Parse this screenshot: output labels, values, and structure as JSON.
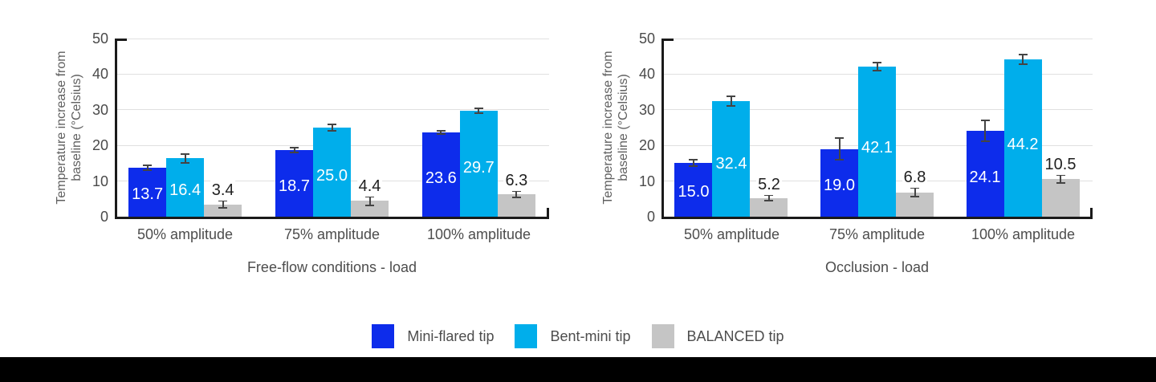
{
  "page": {
    "background": "#ffffff"
  },
  "colors": {
    "mini_flared": "#0d2ceb",
    "bent_mini": "#00aeeb",
    "balanced": "#c5c5c5",
    "axis": "#1a1a1a",
    "gridline": "#e0e0e0",
    "tick_label": "#4a4a4a",
    "axis_title": "#4d4d4d",
    "error_bar": "#444444",
    "label_inside": "#ffffff",
    "label_above": "#1f1f1f",
    "bottom_bar": "#000000"
  },
  "legend": {
    "position": "bottom-center",
    "items": [
      {
        "key": "mini-flared-tip",
        "label": "Mini-flared tip",
        "color": "#0d2ceb"
      },
      {
        "key": "bent-mini-tip",
        "label": "Bent-mini tip",
        "color": "#00aeeb"
      },
      {
        "key": "balanced-tip",
        "label": "BALANCED tip",
        "color": "#c5c5c5"
      }
    ]
  },
  "chart_data": [
    {
      "type": "bar",
      "title": "",
      "xlabel": "Free-flow conditions - load",
      "ylabel": "Temperature increase from\nbaseline (°Celsius)",
      "ylim": [
        0,
        50
      ],
      "yticks": [
        0,
        10,
        20,
        30,
        40,
        50
      ],
      "grid": true,
      "error_bars": true,
      "legend_position": "bottom",
      "categories": [
        "50% amplitude",
        "75% amplitude",
        "100% amplitude"
      ],
      "series": [
        {
          "key": "mini-flared-tip",
          "name": "Mini-flared tip",
          "color": "#0d2ceb",
          "values": [
            13.7,
            18.7,
            23.6
          ],
          "errors": [
            0.7,
            0.7,
            0.4
          ],
          "value_labels": [
            "13.7",
            "18.7",
            "23.6"
          ],
          "label_position": "inside"
        },
        {
          "key": "bent-mini-tip",
          "name": "Bent-mini tip",
          "color": "#00aeeb",
          "values": [
            16.4,
            25.0,
            29.7
          ],
          "errors": [
            1.2,
            1.0,
            0.7
          ],
          "value_labels": [
            "16.4",
            "25.0",
            "29.7"
          ],
          "label_position": "inside"
        },
        {
          "key": "balanced-tip",
          "name": "BALANCED tip",
          "color": "#c5c5c5",
          "values": [
            3.4,
            4.4,
            6.3
          ],
          "errors": [
            1.0,
            1.2,
            1.0
          ],
          "value_labels": [
            "3.4",
            "4.4",
            "6.3"
          ],
          "label_position": "above"
        }
      ]
    },
    {
      "type": "bar",
      "title": "",
      "xlabel": "Occlusion - load",
      "ylabel": "Temperature increase from\nbaseline (°Celsius)",
      "ylim": [
        0,
        50
      ],
      "yticks": [
        0,
        10,
        20,
        30,
        40,
        50
      ],
      "grid": true,
      "error_bars": true,
      "legend_position": "bottom",
      "categories": [
        "50% amplitude",
        "75% amplitude",
        "100% amplitude"
      ],
      "series": [
        {
          "key": "mini-flared-tip",
          "name": "Mini-flared tip",
          "color": "#0d2ceb",
          "values": [
            15.0,
            19.0,
            24.1
          ],
          "errors": [
            0.9,
            3.0,
            3.0
          ],
          "value_labels": [
            "15.0",
            "19.0",
            "24.1"
          ],
          "label_position": "inside"
        },
        {
          "key": "bent-mini-tip",
          "name": "Bent-mini tip",
          "color": "#00aeeb",
          "values": [
            32.4,
            42.1,
            44.2
          ],
          "errors": [
            1.4,
            1.2,
            1.3
          ],
          "value_labels": [
            "32.4",
            "42.1",
            "44.2"
          ],
          "label_position": "inside"
        },
        {
          "key": "balanced-tip",
          "name": "BALANCED tip",
          "color": "#c5c5c5",
          "values": [
            5.2,
            6.8,
            10.5
          ],
          "errors": [
            0.8,
            1.2,
            1.1
          ],
          "value_labels": [
            "5.2",
            "6.8",
            "10.5"
          ],
          "label_position": "above"
        }
      ]
    }
  ]
}
